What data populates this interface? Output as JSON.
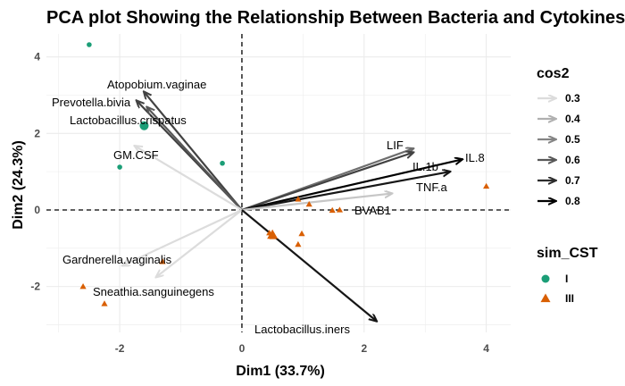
{
  "chart_data": {
    "type": "scatter",
    "subtype": "pca-biplot",
    "title": "PCA plot Showing the Relationship Between Bacteria and Cytokines",
    "xlabel": "Dim1 (33.7%)",
    "ylabel": "Dim2 (24.3%)",
    "xlim": [
      -3.2,
      4.4
    ],
    "ylim": [
      -3.2,
      4.6
    ],
    "x_ticks": [
      -2,
      0,
      2,
      4
    ],
    "y_ticks": [
      -2,
      0,
      2,
      4
    ],
    "grid": true,
    "reference_lines": {
      "x": 0,
      "y": 0,
      "style": "dashed"
    },
    "individuals": {
      "legend_title": "sim_CST",
      "groups": [
        {
          "name": "I",
          "shape": "circle",
          "color": "#1b9e77",
          "points": [
            [
              -2.5,
              4.32
            ],
            [
              -2.0,
              1.12
            ],
            [
              -0.32,
              1.22
            ]
          ],
          "centroid": [
            -1.6,
            2.2
          ]
        },
        {
          "name": "III",
          "shape": "triangle",
          "color": "#d95f02",
          "points": [
            [
              -2.6,
              -2.0
            ],
            [
              -2.25,
              -2.45
            ],
            [
              -1.3,
              -1.35
            ],
            [
              0.45,
              -0.6
            ],
            [
              0.5,
              -0.7
            ],
            [
              0.92,
              -0.9
            ],
            [
              0.98,
              -0.62
            ],
            [
              0.92,
              0.28
            ],
            [
              1.1,
              0.15
            ],
            [
              1.48,
              -0.01
            ],
            [
              1.6,
              0.0
            ],
            [
              4.0,
              0.62
            ]
          ],
          "centroid": [
            0.5,
            -0.65
          ]
        }
      ]
    },
    "variables": {
      "legend_title": "cos2",
      "legend_levels": [
        "0.3",
        "0.4",
        "0.5",
        "0.6",
        "0.7",
        "0.8"
      ],
      "items": [
        {
          "name": "Atopobium.vaginae",
          "x": -1.6,
          "y": 3.08,
          "cos2": 0.65
        },
        {
          "name": "Prevotella.bivia",
          "x": -1.72,
          "y": 2.85,
          "cos2": 0.65
        },
        {
          "name": "Lactobacillus.crispatus",
          "x": -1.55,
          "y": 2.68,
          "cos2": 0.6
        },
        {
          "name": "GM.CSF",
          "x": -1.75,
          "y": 1.67,
          "cos2": 0.25
        },
        {
          "name": "LIF",
          "x": 2.8,
          "y": 1.6,
          "cos2": 0.55
        },
        {
          "name": "IL.1b",
          "x": 2.8,
          "y": 1.5,
          "cos2": 0.65
        },
        {
          "name": "IL.8",
          "x": 3.6,
          "y": 1.32,
          "cos2": 0.8
        },
        {
          "name": "TNF.a",
          "x": 3.4,
          "y": 1.0,
          "cos2": 0.75
        },
        {
          "name": "BVAB1",
          "x": 2.45,
          "y": 0.43,
          "cos2": 0.35
        },
        {
          "name": "Gardnerella.vaginalis",
          "x": -1.95,
          "y": -1.45,
          "cos2": 0.3
        },
        {
          "name": "Sneathia.sanguinegens",
          "x": -1.4,
          "y": -1.75,
          "cos2": 0.3
        },
        {
          "name": "Lactobacillus.iners",
          "x": 2.2,
          "y": -2.9,
          "cos2": 0.75
        }
      ]
    }
  }
}
